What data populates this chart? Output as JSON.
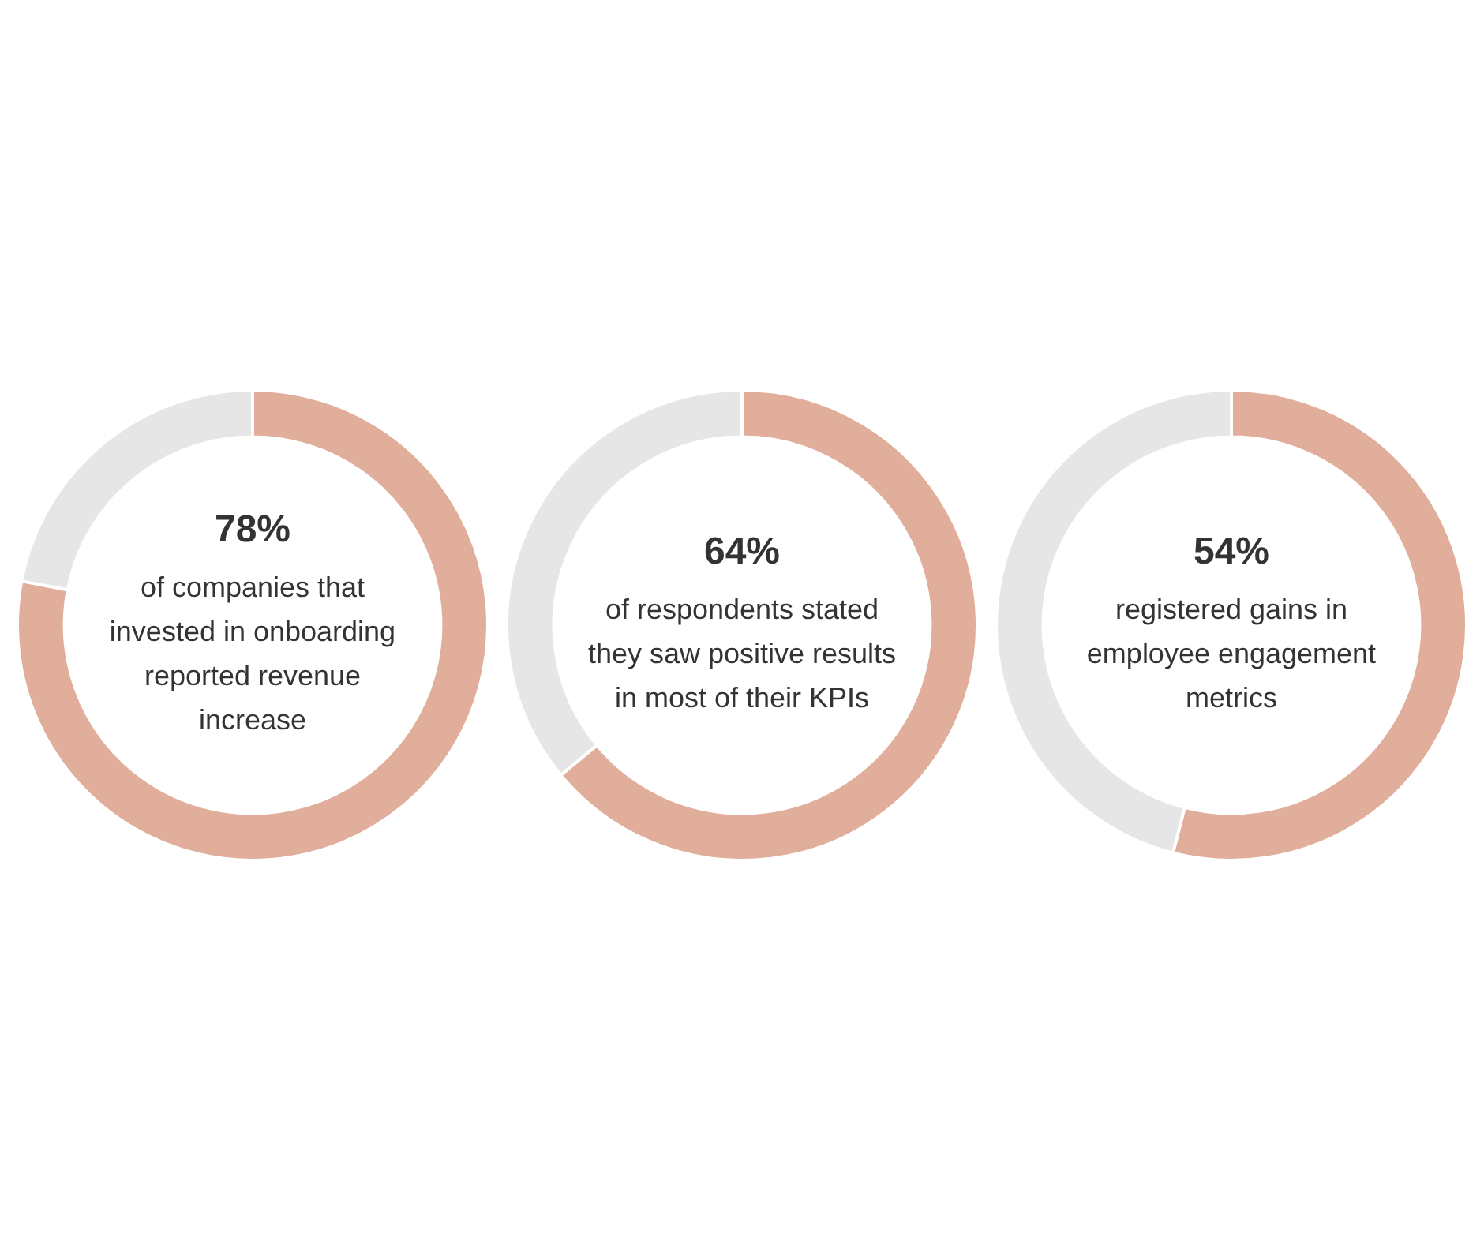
{
  "chart_data": [
    {
      "type": "donut",
      "title": "78%",
      "subtitle": "of companies that invested in onboarding reported revenue increase",
      "categories": [
        null,
        null
      ],
      "values": [
        78,
        22
      ],
      "colors": [
        "#e0ae9a",
        "#e6e6e6"
      ],
      "legend": false
    },
    {
      "type": "donut",
      "title": "64%",
      "subtitle": "of respondents stated they saw positive results in most of their KPIs",
      "categories": [
        null,
        null
      ],
      "values": [
        64,
        36
      ],
      "colors": [
        "#e0ae9a",
        "#e6e6e6"
      ],
      "legend": false
    },
    {
      "type": "donut",
      "title": "54%",
      "subtitle": "registered gains in employee engagement metrics",
      "categories": [
        null,
        null
      ],
      "values": [
        54,
        46
      ],
      "colors": [
        "#e0ae9a",
        "#e6e6e6"
      ],
      "legend": false
    }
  ]
}
